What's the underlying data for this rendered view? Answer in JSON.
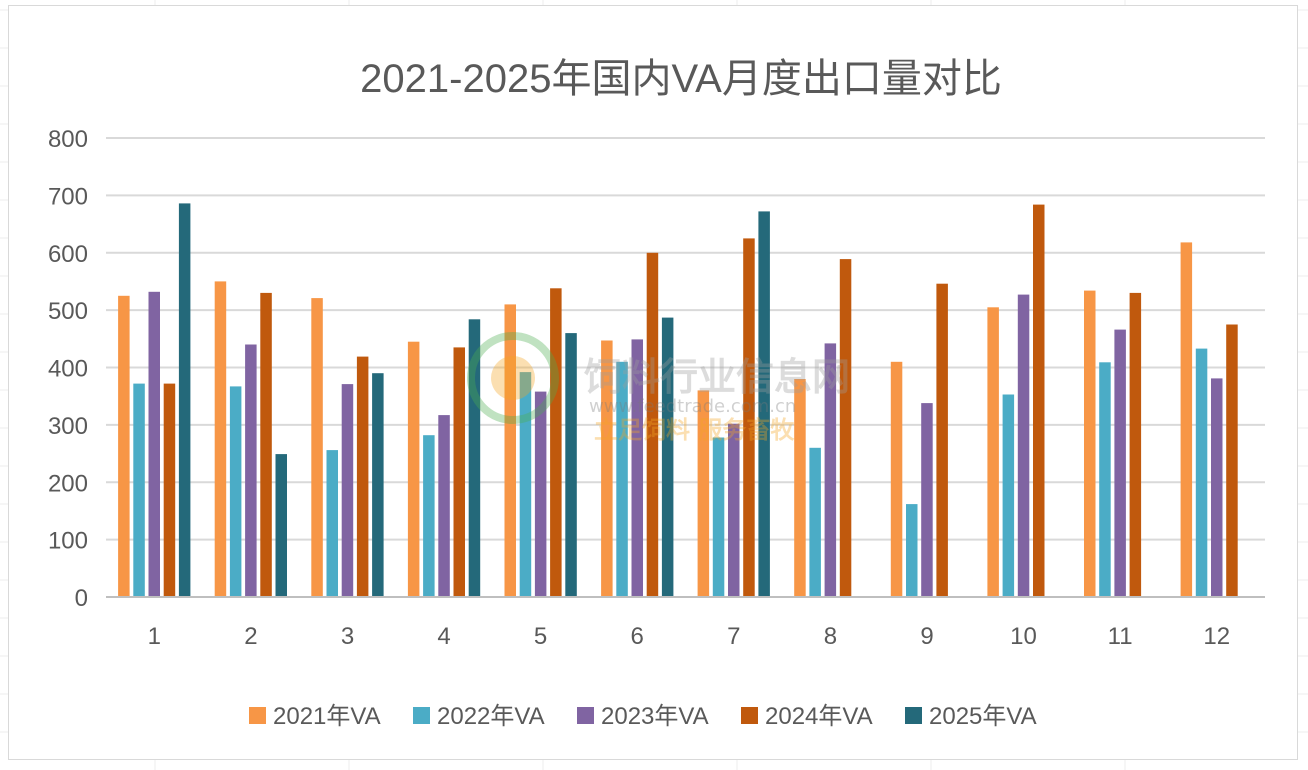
{
  "chart_data": {
    "type": "bar",
    "title": "2021-2025年国内VA月度出口量对比",
    "xlabel": "",
    "ylabel": "",
    "categories": [
      "1",
      "2",
      "3",
      "4",
      "5",
      "6",
      "7",
      "8",
      "9",
      "10",
      "11",
      "12"
    ],
    "ylim": [
      0,
      800
    ],
    "yticks": [
      0,
      100,
      200,
      300,
      400,
      500,
      600,
      700,
      800
    ],
    "grid": true,
    "legend_position": "bottom",
    "series": [
      {
        "name": "2021年VA",
        "color": "#F79646",
        "values": [
          525,
          550,
          521,
          445,
          510,
          447,
          360,
          380,
          410,
          505,
          534,
          618
        ]
      },
      {
        "name": "2022年VA",
        "color": "#4BACC6",
        "values": [
          372,
          367,
          256,
          282,
          392,
          410,
          278,
          260,
          162,
          353,
          409,
          433
        ]
      },
      {
        "name": "2023年VA",
        "color": "#8064A2",
        "values": [
          532,
          440,
          371,
          317,
          358,
          449,
          302,
          442,
          338,
          527,
          466,
          381
        ]
      },
      {
        "name": "2024年VA",
        "color": "#C0590D",
        "values": [
          372,
          530,
          419,
          435,
          538,
          600,
          625,
          589,
          546,
          684,
          530,
          475
        ]
      },
      {
        "name": "2025年VA",
        "color": "#24697A",
        "values": [
          686,
          249,
          390,
          484,
          460,
          487,
          672,
          null,
          null,
          null,
          null,
          null
        ]
      }
    ]
  },
  "watermark": {
    "name": "饲料行业信息网",
    "url": "www.feedtrade.com.cn",
    "slogan": "立足饲料 服务畜牧"
  }
}
